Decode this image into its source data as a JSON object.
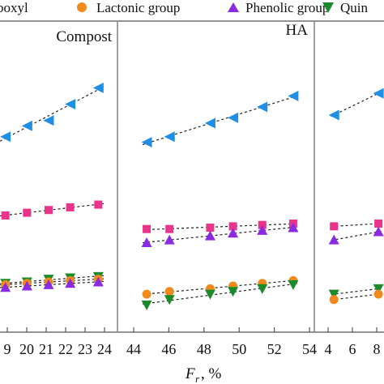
{
  "legend": [
    {
      "label": "boxyl",
      "marker": "square",
      "color": "#e8358b"
    },
    {
      "label": "Lactonic group",
      "marker": "circle",
      "color": "#f08a1c"
    },
    {
      "label": "Phenolic group",
      "marker": "triangle-up",
      "color": "#8a2be2"
    },
    {
      "label": "Quin",
      "marker": "triangle-down",
      "color": "#1a8a2a"
    }
  ],
  "xlabel_main": "F",
  "xlabel_sub": "r",
  "xlabel_unit": ", %",
  "chart_data": [
    {
      "type": "scatter",
      "title": "Compost",
      "x_tick_labels": [
        "9",
        "20",
        "21",
        "22",
        "23",
        "24"
      ],
      "xlim": [
        18.9,
        24.0
      ],
      "series": [
        {
          "name": "",
          "marker": "triangle-left",
          "color": "#1f8fe5",
          "x": [
            19.0,
            20.0,
            21.0,
            22.0,
            23.3
          ],
          "y": [
            0.72,
            0.76,
            0.78,
            0.84,
            0.9
          ]
        },
        {
          "name": "boxyl",
          "marker": "square",
          "color": "#e8358b",
          "x": [
            19.0,
            20.0,
            21.0,
            22.0,
            23.3
          ],
          "y": [
            0.43,
            0.44,
            0.45,
            0.46,
            0.47
          ]
        },
        {
          "name": "Quin",
          "marker": "triangle-down",
          "color": "#1a8a2a",
          "x": [
            19.0,
            20.0,
            21.0,
            22.0,
            23.3
          ],
          "y": [
            0.18,
            0.185,
            0.195,
            0.2,
            0.205
          ]
        },
        {
          "name": "Lactonic group",
          "marker": "circle",
          "color": "#f08a1c",
          "x": [
            19.0,
            20.0,
            21.0,
            22.0,
            23.3
          ],
          "y": [
            0.175,
            0.18,
            0.185,
            0.19,
            0.195
          ]
        },
        {
          "name": "Phenolic group",
          "marker": "triangle-up",
          "color": "#8a2be2",
          "x": [
            19.0,
            20.0,
            21.0,
            22.0,
            23.3
          ],
          "y": [
            0.165,
            0.17,
            0.175,
            0.18,
            0.185
          ]
        }
      ]
    },
    {
      "type": "scatter",
      "title": "HA",
      "x_tick_labels": [
        "44",
        "46",
        "48",
        "50",
        "52",
        "54"
      ],
      "xlim": [
        43.2,
        54.0
      ],
      "series": [
        {
          "name": "",
          "marker": "triangle-left",
          "color": "#1f8fe5",
          "x": [
            44.0,
            45.4,
            47.9,
            49.3,
            51.1,
            53.0
          ],
          "y": [
            0.7,
            0.72,
            0.77,
            0.79,
            0.83,
            0.87
          ]
        },
        {
          "name": "boxyl",
          "marker": "square",
          "color": "#e8358b",
          "x": [
            44.0,
            45.4,
            47.9,
            49.3,
            51.1,
            53.0
          ],
          "y": [
            0.38,
            0.38,
            0.385,
            0.39,
            0.395,
            0.4
          ]
        },
        {
          "name": "Phenolic group",
          "marker": "triangle-up",
          "color": "#8a2be2",
          "x": [
            44.0,
            45.4,
            47.9,
            49.3,
            51.1,
            53.0
          ],
          "y": [
            0.33,
            0.34,
            0.355,
            0.365,
            0.375,
            0.385
          ]
        },
        {
          "name": "Lactonic group",
          "marker": "circle",
          "color": "#f08a1c",
          "x": [
            44.0,
            45.4,
            47.9,
            49.3,
            51.1,
            53.0
          ],
          "y": [
            0.14,
            0.15,
            0.16,
            0.17,
            0.18,
            0.19
          ]
        },
        {
          "name": "Quin",
          "marker": "triangle-down",
          "color": "#1a8a2a",
          "x": [
            44.0,
            45.4,
            47.9,
            49.3,
            51.1,
            53.0
          ],
          "y": [
            0.1,
            0.12,
            0.14,
            0.15,
            0.16,
            0.175
          ]
        }
      ]
    },
    {
      "type": "scatter",
      "title": "",
      "x_tick_labels": [
        "4",
        "6",
        "8"
      ],
      "xlim": [
        4.0,
        8.5
      ],
      "series": [
        {
          "name": "",
          "marker": "triangle-left",
          "color": "#1f8fe5",
          "x": [
            4.5,
            8.3
          ],
          "y": [
            0.8,
            0.88
          ]
        },
        {
          "name": "boxyl",
          "marker": "square",
          "color": "#e8358b",
          "x": [
            4.5,
            8.3
          ],
          "y": [
            0.39,
            0.4
          ]
        },
        {
          "name": "Phenolic group",
          "marker": "triangle-up",
          "color": "#8a2be2",
          "x": [
            4.5,
            8.3
          ],
          "y": [
            0.34,
            0.37
          ]
        },
        {
          "name": "Quin",
          "marker": "triangle-down",
          "color": "#1a8a2a",
          "x": [
            4.5,
            8.3
          ],
          "y": [
            0.14,
            0.16
          ]
        },
        {
          "name": "Lactonic group",
          "marker": "circle",
          "color": "#f08a1c",
          "x": [
            4.5,
            8.3
          ],
          "y": [
            0.12,
            0.14
          ]
        }
      ]
    }
  ]
}
